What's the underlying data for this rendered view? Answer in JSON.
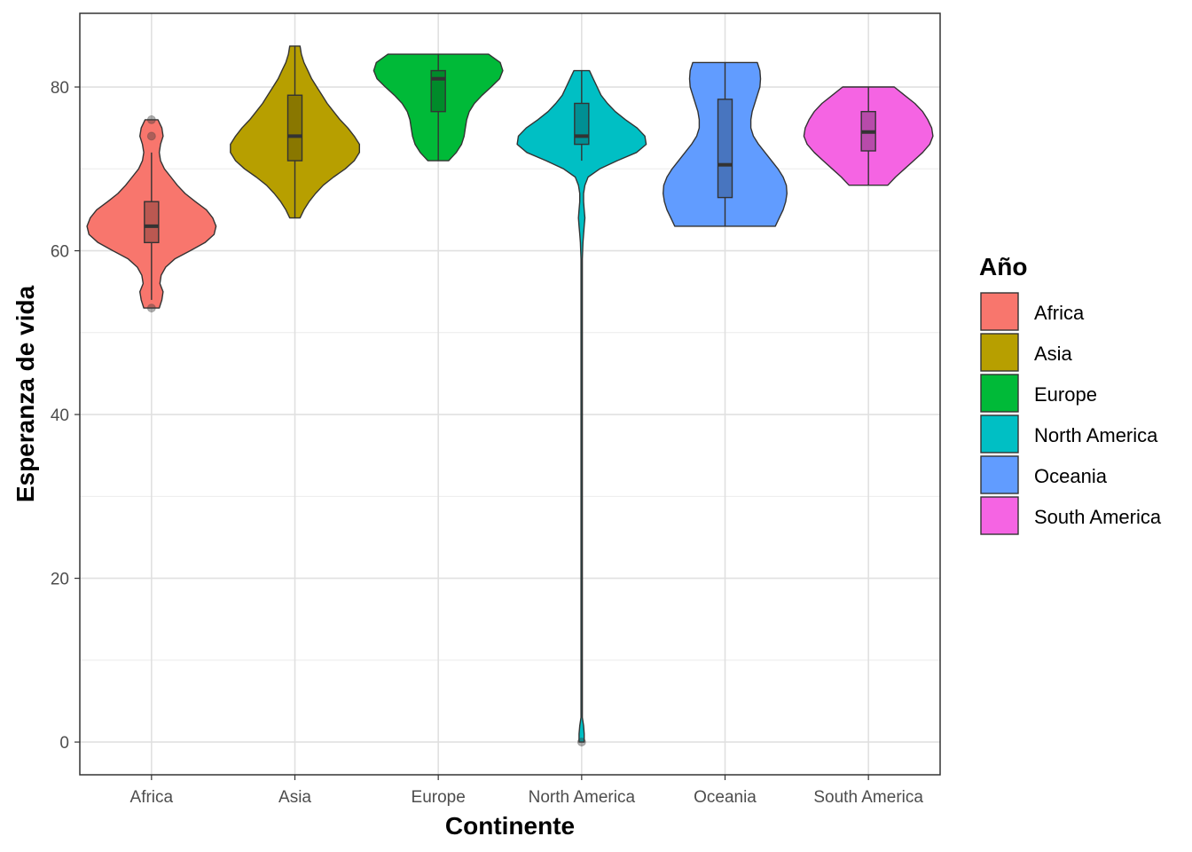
{
  "chart_data": {
    "type": "violin",
    "xlabel": "Continente",
    "ylabel": "Esperanza de vida",
    "legend_title": "Año",
    "legend_position": "right",
    "ylim": [
      -4,
      89
    ],
    "y_ticks": [
      0,
      20,
      40,
      60,
      80
    ],
    "grid": true,
    "categories": [
      "Africa",
      "Asia",
      "Europe",
      "North America",
      "Oceania",
      "South America"
    ],
    "series": [
      {
        "name": "Africa",
        "color": "#F8766D",
        "box": {
          "q1": 61,
          "median": 63,
          "q3": 66,
          "whisker_low": 54,
          "whisker_high": 72
        },
        "outliers": [
          53,
          74,
          76
        ],
        "density": [
          [
            53,
            0.12
          ],
          [
            54,
            0.16
          ],
          [
            55,
            0.18
          ],
          [
            56,
            0.13
          ],
          [
            57,
            0.15
          ],
          [
            58,
            0.22
          ],
          [
            59,
            0.36
          ],
          [
            60,
            0.6
          ],
          [
            61,
            0.83
          ],
          [
            62,
            0.97
          ],
          [
            63,
            1.0
          ],
          [
            64,
            0.95
          ],
          [
            65,
            0.85
          ],
          [
            66,
            0.68
          ],
          [
            67,
            0.52
          ],
          [
            68,
            0.4
          ],
          [
            69,
            0.3
          ],
          [
            70,
            0.2
          ],
          [
            71,
            0.14
          ],
          [
            72,
            0.12
          ],
          [
            73,
            0.14
          ],
          [
            74,
            0.18
          ],
          [
            75,
            0.16
          ],
          [
            76,
            0.1
          ]
        ]
      },
      {
        "name": "Asia",
        "color": "#B79F00",
        "box": {
          "q1": 71,
          "median": 74,
          "q3": 79,
          "whisker_low": 64,
          "whisker_high": 85
        },
        "outliers": [],
        "density": [
          [
            64,
            0.08
          ],
          [
            65,
            0.14
          ],
          [
            66,
            0.22
          ],
          [
            67,
            0.32
          ],
          [
            68,
            0.44
          ],
          [
            69,
            0.6
          ],
          [
            70,
            0.78
          ],
          [
            71,
            0.92
          ],
          [
            72,
            1.0
          ],
          [
            73,
            1.0
          ],
          [
            74,
            0.92
          ],
          [
            75,
            0.82
          ],
          [
            76,
            0.7
          ],
          [
            77,
            0.6
          ],
          [
            78,
            0.5
          ],
          [
            79,
            0.42
          ],
          [
            80,
            0.34
          ],
          [
            81,
            0.26
          ],
          [
            82,
            0.2
          ],
          [
            83,
            0.14
          ],
          [
            84,
            0.1
          ],
          [
            85,
            0.08
          ]
        ]
      },
      {
        "name": "Europe",
        "color": "#00BA38",
        "box": {
          "q1": 77,
          "median": 81,
          "q3": 82,
          "whisker_low": 71,
          "whisker_high": 84
        },
        "outliers": [],
        "density": [
          [
            71,
            0.16
          ],
          [
            72,
            0.28
          ],
          [
            73,
            0.36
          ],
          [
            74,
            0.4
          ],
          [
            75,
            0.42
          ],
          [
            76,
            0.44
          ],
          [
            77,
            0.48
          ],
          [
            78,
            0.56
          ],
          [
            79,
            0.68
          ],
          [
            80,
            0.82
          ],
          [
            81,
            0.95
          ],
          [
            82,
            1.0
          ],
          [
            83,
            0.96
          ],
          [
            84,
            0.78
          ]
        ]
      },
      {
        "name": "North America",
        "color": "#00BFC4",
        "box": {
          "q1": 73,
          "median": 74,
          "q3": 78,
          "whisker_low": 71,
          "whisker_high": 82
        },
        "outliers": [
          0
        ],
        "density": [
          [
            0,
            0.04
          ],
          [
            1,
            0.04
          ],
          [
            2,
            0.03
          ],
          [
            3,
            0.01
          ],
          [
            4,
            0.01
          ],
          [
            30,
            0.01
          ],
          [
            59,
            0.01
          ],
          [
            61,
            0.02
          ],
          [
            62,
            0.03
          ],
          [
            63,
            0.04
          ],
          [
            64,
            0.05
          ],
          [
            65,
            0.04
          ],
          [
            66,
            0.03
          ],
          [
            67,
            0.03
          ],
          [
            68,
            0.05
          ],
          [
            69,
            0.1
          ],
          [
            70,
            0.28
          ],
          [
            71,
            0.55
          ],
          [
            72,
            0.85
          ],
          [
            73,
            1.0
          ],
          [
            74,
            0.98
          ],
          [
            75,
            0.86
          ],
          [
            76,
            0.68
          ],
          [
            77,
            0.52
          ],
          [
            78,
            0.4
          ],
          [
            79,
            0.3
          ],
          [
            80,
            0.24
          ],
          [
            81,
            0.18
          ],
          [
            82,
            0.12
          ]
        ]
      },
      {
        "name": "Oceania",
        "color": "#619CFF",
        "box": {
          "q1": 66.5,
          "median": 70.5,
          "q3": 78.5,
          "whisker_low": 63,
          "whisker_high": 83
        },
        "outliers": [],
        "density": [
          [
            63,
            0.78
          ],
          [
            64,
            0.84
          ],
          [
            65,
            0.9
          ],
          [
            66,
            0.94
          ],
          [
            67,
            0.96
          ],
          [
            68,
            0.95
          ],
          [
            69,
            0.9
          ],
          [
            70,
            0.82
          ],
          [
            71,
            0.72
          ],
          [
            72,
            0.62
          ],
          [
            73,
            0.52
          ],
          [
            74,
            0.44
          ],
          [
            75,
            0.4
          ],
          [
            76,
            0.4
          ],
          [
            77,
            0.42
          ],
          [
            78,
            0.46
          ],
          [
            79,
            0.5
          ],
          [
            80,
            0.54
          ],
          [
            81,
            0.55
          ],
          [
            82,
            0.54
          ],
          [
            83,
            0.5
          ]
        ]
      },
      {
        "name": "South America",
        "color": "#F564E3",
        "box": {
          "q1": 72.2,
          "median": 74.5,
          "q3": 77,
          "whisker_low": 68,
          "whisker_high": 80
        },
        "outliers": [],
        "density": [
          [
            68,
            0.3
          ],
          [
            69,
            0.42
          ],
          [
            70,
            0.56
          ],
          [
            71,
            0.7
          ],
          [
            72,
            0.84
          ],
          [
            73,
            0.95
          ],
          [
            74,
            1.0
          ],
          [
            75,
            0.98
          ],
          [
            76,
            0.92
          ],
          [
            77,
            0.84
          ],
          [
            78,
            0.72
          ],
          [
            79,
            0.56
          ],
          [
            80,
            0.4
          ]
        ]
      }
    ]
  }
}
